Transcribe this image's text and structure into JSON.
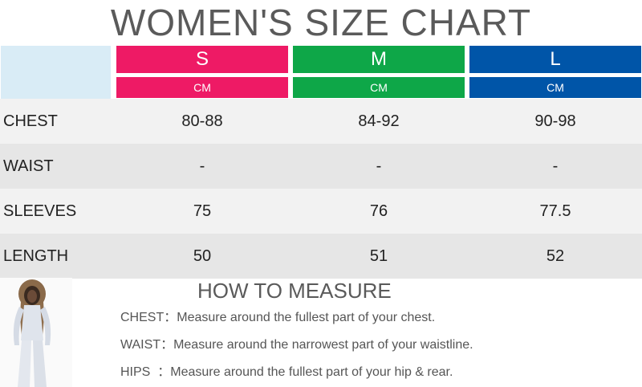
{
  "title": "WOMEN'S SIZE CHART",
  "sizes": [
    {
      "label": "S",
      "unit": "CM",
      "color": "#ee1a65"
    },
    {
      "label": "M",
      "unit": "CM",
      "color": "#0ea748"
    },
    {
      "label": "L",
      "unit": "CM",
      "color": "#0055a8"
    }
  ],
  "rows": [
    {
      "label": "CHEST",
      "values": [
        "80-88",
        "84-92",
        "90-98"
      ]
    },
    {
      "label": "WAIST",
      "values": [
        "-",
        "-",
        "-"
      ]
    },
    {
      "label": "SLEEVES",
      "values": [
        "75",
        "76",
        "77.5"
      ]
    },
    {
      "label": "LENGTH",
      "values": [
        "50",
        "51",
        "52"
      ]
    }
  ],
  "how_to_measure": {
    "title": "HOW TO MEASURE",
    "items": [
      {
        "label": "CHEST：",
        "text": "Measure around the fullest part of your chest."
      },
      {
        "label": "WAIST：",
        "text": "Measure around the narrowest part of your waistline."
      },
      {
        "label": "HIPS  ：",
        "text": "Measure around the fullest part of your hip & rear."
      }
    ]
  },
  "colors": {
    "title_text": "#5a5a5a",
    "header_blank": "#d9ecf6",
    "row_light": "#f2f2f2",
    "row_dark": "#e6e6e6"
  }
}
